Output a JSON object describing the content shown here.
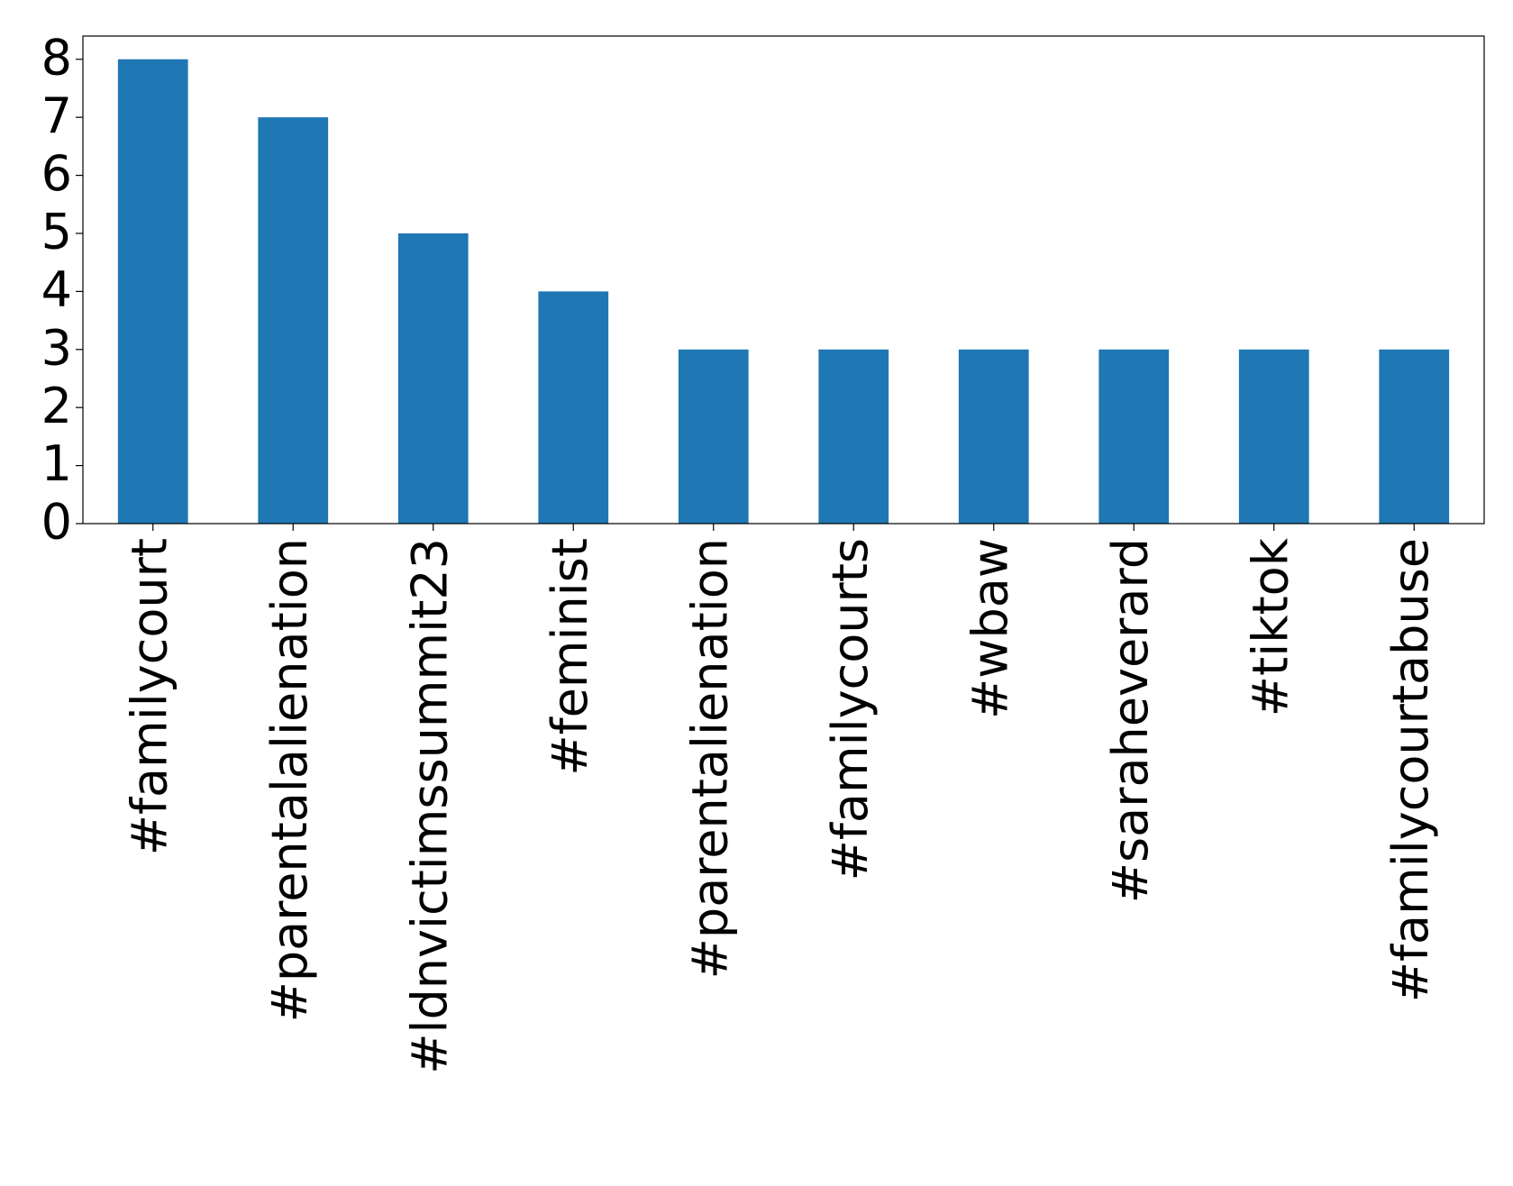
{
  "chart_data": {
    "type": "bar",
    "categories": [
      "#familycourt",
      "#parentalalienation",
      "#ldnvictimssummit23",
      "#feminist",
      "#parentalienation",
      "#familycourts",
      "#wbaw",
      "#saraheverard",
      "#tiktok",
      "#familycourtabuse"
    ],
    "values": [
      8,
      7,
      5,
      4,
      3,
      3,
      3,
      3,
      3,
      3
    ],
    "color": "#1f77b4",
    "ylim": [
      0,
      8.4
    ],
    "yticks": [
      0,
      1,
      2,
      3,
      4,
      5,
      6,
      7,
      8
    ],
    "grid": false
  }
}
